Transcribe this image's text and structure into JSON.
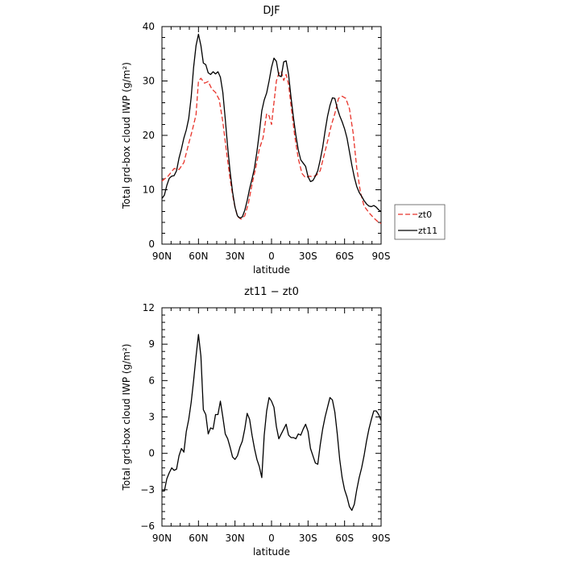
{
  "chart_data": [
    {
      "type": "line",
      "title": "DJF",
      "xlabel": "latitude",
      "ylabel": "Total grd-box cloud IWP (g/m²)",
      "xlim": [
        90,
        -90
      ],
      "ylim": [
        0,
        40
      ],
      "x_ticks": [
        {
          "value": 90,
          "label": "90N"
        },
        {
          "value": 60,
          "label": "60N"
        },
        {
          "value": 30,
          "label": "30N"
        },
        {
          "value": 0,
          "label": "0"
        },
        {
          "value": -30,
          "label": "30S"
        },
        {
          "value": -60,
          "label": "60S"
        },
        {
          "value": -90,
          "label": "90S"
        }
      ],
      "y_ticks": [
        {
          "value": 0,
          "label": "0"
        },
        {
          "value": 10,
          "label": "10"
        },
        {
          "value": 20,
          "label": "20"
        },
        {
          "value": 30,
          "label": "30"
        },
        {
          "value": 40,
          "label": "40"
        }
      ],
      "legend": {
        "placement": "right",
        "entries": [
          "zt0",
          "zt11"
        ]
      },
      "series": [
        {
          "name": "zt0",
          "color": "#e8332a",
          "dash": "dashed",
          "x": [
            90,
            85,
            80,
            76,
            72,
            68,
            65,
            62,
            60,
            58,
            55,
            52,
            49,
            46,
            43,
            40,
            37,
            34,
            31,
            28,
            25,
            22,
            19,
            16,
            13,
            10,
            7,
            4,
            2,
            0,
            -2,
            -4,
            -6,
            -8,
            -10,
            -12,
            -14,
            -16,
            -19,
            -22,
            -25,
            -28,
            -31,
            -34,
            -37,
            -40,
            -43,
            -46,
            -49,
            -52,
            -55,
            -58,
            -61,
            -64,
            -67,
            -70,
            -73,
            -76,
            -80,
            -84,
            -88,
            -90
          ],
          "values": [
            11.6,
            12.5,
            13.9,
            13.7,
            15,
            18.5,
            21,
            23.8,
            30,
            30.5,
            29.6,
            29.9,
            28.5,
            27.9,
            26.6,
            22.5,
            17,
            11.9,
            7.8,
            5.1,
            4.6,
            5.2,
            7.5,
            11,
            14,
            17.5,
            19.5,
            24,
            23.6,
            22,
            26,
            30,
            31.4,
            31.8,
            30.1,
            31.2,
            29.4,
            25.5,
            20,
            15.7,
            13,
            12.2,
            12.5,
            12.4,
            12.7,
            13.5,
            16.2,
            18.9,
            21.8,
            24,
            26.8,
            27.2,
            26.8,
            24.9,
            20.5,
            14,
            9.6,
            7,
            5.8,
            4.8,
            4,
            3.8
          ]
        },
        {
          "name": "zt11",
          "color": "#000000",
          "dash": "solid",
          "x": [
            90,
            88,
            86,
            84,
            82,
            80,
            78,
            76,
            74,
            72,
            70,
            68,
            66,
            64,
            62,
            60,
            58,
            56,
            54,
            52,
            50,
            48,
            46,
            44,
            42,
            40,
            38,
            36,
            34,
            32,
            30,
            28,
            26,
            24,
            22,
            20,
            18,
            16,
            14,
            12,
            10,
            8,
            6,
            4,
            2,
            0,
            -2,
            -4,
            -6,
            -8,
            -10,
            -12,
            -14,
            -16,
            -18,
            -20,
            -22,
            -24,
            -26,
            -28,
            -30,
            -32,
            -34,
            -36,
            -38,
            -40,
            -42,
            -44,
            -46,
            -48,
            -50,
            -52,
            -54,
            -56,
            -58,
            -60,
            -62,
            -64,
            -66,
            -68,
            -70,
            -72,
            -74,
            -76,
            -78,
            -80,
            -82,
            -84,
            -86,
            -88,
            -90
          ],
          "values": [
            8.4,
            9,
            10.8,
            12.1,
            12.5,
            12.6,
            13.5,
            15.8,
            17.5,
            19.5,
            21,
            23.1,
            27,
            32.5,
            36.5,
            38.6,
            36.5,
            33.3,
            33,
            31.5,
            31.2,
            31.7,
            31.3,
            31.7,
            30.7,
            27.9,
            23,
            17.8,
            13.3,
            9.6,
            6.8,
            5.2,
            4.8,
            5,
            6.2,
            8,
            10.2,
            12,
            14,
            17,
            20.5,
            24.5,
            26.5,
            27.8,
            30,
            32.5,
            34.2,
            33.6,
            31,
            30.8,
            33.5,
            33.7,
            31.2,
            27,
            23.3,
            20,
            17.3,
            15.5,
            14.9,
            14.3,
            12.4,
            11.5,
            11.7,
            12.5,
            13.5,
            15.5,
            17.8,
            20.8,
            23.5,
            25.5,
            26.9,
            26.8,
            25,
            23.6,
            22.5,
            21.2,
            19.5,
            17,
            14.5,
            12.3,
            10.6,
            9.5,
            8.8,
            8,
            7.4,
            7,
            6.9,
            7.1,
            6.8,
            6.3,
            6
          ]
        }
      ]
    },
    {
      "type": "line",
      "title": "zt11 − zt0",
      "xlabel": "latitude",
      "ylabel": "Total grd-box cloud IWP (g/m²)",
      "xlim": [
        90,
        -90
      ],
      "ylim": [
        -6,
        12
      ],
      "x_ticks": [
        {
          "value": 90,
          "label": "90N"
        },
        {
          "value": 60,
          "label": "60N"
        },
        {
          "value": 30,
          "label": "30N"
        },
        {
          "value": 0,
          "label": "0"
        },
        {
          "value": -30,
          "label": "30S"
        },
        {
          "value": -60,
          "label": "60S"
        },
        {
          "value": -90,
          "label": "90S"
        }
      ],
      "y_ticks": [
        {
          "value": -6,
          "label": "−6"
        },
        {
          "value": -3,
          "label": "−3"
        },
        {
          "value": 0,
          "label": "0"
        },
        {
          "value": 3,
          "label": "3"
        },
        {
          "value": 6,
          "label": "6"
        },
        {
          "value": 9,
          "label": "9"
        },
        {
          "value": 12,
          "label": "12"
        }
      ],
      "series": [
        {
          "color": "#000000",
          "dash": "solid",
          "x": [
            90,
            88,
            86,
            84,
            82,
            80,
            78,
            76,
            74,
            72,
            70,
            68,
            66,
            64,
            62,
            60,
            58,
            56,
            54,
            52,
            50,
            48,
            46,
            44,
            42,
            40,
            38,
            36,
            34,
            32,
            30,
            28,
            26,
            24,
            22,
            20,
            18,
            16,
            14,
            12,
            10,
            8,
            6,
            4,
            2,
            0,
            -2,
            -4,
            -6,
            -8,
            -10,
            -12,
            -14,
            -16,
            -18,
            -20,
            -22,
            -24,
            -26,
            -28,
            -30,
            -32,
            -34,
            -36,
            -38,
            -40,
            -42,
            -44,
            -46,
            -48,
            -50,
            -52,
            -54,
            -56,
            -58,
            -60,
            -62,
            -64,
            -66,
            -68,
            -70,
            -72,
            -74,
            -76,
            -78,
            -80,
            -82,
            -84,
            -86,
            -88,
            -90
          ],
          "values": [
            -3.1,
            -3.1,
            -2.1,
            -1.6,
            -1.2,
            -1.4,
            -1.3,
            -0.2,
            0.4,
            0.1,
            1.8,
            2.8,
            4.2,
            6,
            8,
            9.8,
            8,
            3.6,
            3.2,
            1.6,
            2.1,
            2,
            3.2,
            3.2,
            4.3,
            3,
            1.6,
            1.2,
            0.5,
            -0.3,
            -0.5,
            -0.2,
            0.5,
            1,
            2,
            3.3,
            2.8,
            1.5,
            0.4,
            -0.5,
            -1.1,
            -2,
            1.5,
            3.5,
            4.6,
            4.3,
            3.8,
            2.2,
            1.2,
            1.6,
            2,
            2.4,
            1.5,
            1.3,
            1.3,
            1.2,
            1.6,
            1.5,
            2,
            2.4,
            1.8,
            0.4,
            -0.2,
            -0.8,
            -0.9,
            0.7,
            2,
            3,
            3.8,
            4.6,
            4.4,
            3.4,
            1.6,
            -0.5,
            -2,
            -3,
            -3.6,
            -4.4,
            -4.7,
            -4.2,
            -3,
            -2,
            -1.2,
            -0.2,
            1,
            2,
            2.8,
            3.5,
            3.5,
            3.2,
            2.7
          ]
        }
      ]
    }
  ]
}
